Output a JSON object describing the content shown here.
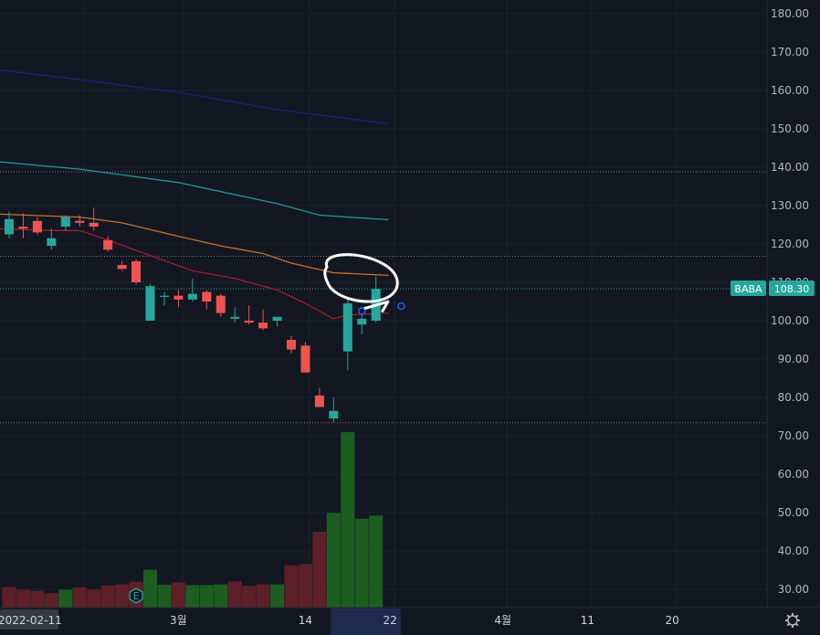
{
  "colors": {
    "background": "#131722",
    "grid": "#1e222d",
    "up": "#26a69a",
    "down": "#ef5350",
    "volume_up": "#1b5e20",
    "volume_down": "#5d2028",
    "ma_navy": "#1a237e",
    "ma_teal": "#1e9a97",
    "ma_orange": "#c9712a",
    "ma_red": "#a31c2a",
    "badge": "#26a69a",
    "annotation": "#ffffff",
    "scale_text": "#b2b5be"
  },
  "price_axis": {
    "ticks": [
      "180.00",
      "170.00",
      "160.00",
      "150.00",
      "140.00",
      "130.00",
      "120.00",
      "110.00",
      "100.00",
      "90.00",
      "80.00",
      "70.00",
      "60.00",
      "50.00",
      "40.00",
      "30.00"
    ]
  },
  "time_axis": {
    "start_label": "2022-02-11",
    "labels": [
      {
        "text": "3월",
        "bar": 12
      },
      {
        "text": "14",
        "bar": 21
      },
      {
        "text": "22",
        "bar": 27
      },
      {
        "text": "4월",
        "bar": 35
      },
      {
        "text": "11",
        "bar": 41
      },
      {
        "text": "20",
        "bar": 47
      }
    ]
  },
  "symbol_badge": {
    "symbol": "BABA",
    "price": "108.30"
  },
  "earnings_marker": {
    "letter": "E",
    "bar": 9
  },
  "settings_icon": "gear-icon",
  "chart_data": {
    "type": "candlestick",
    "symbol": "BABA",
    "last_price": 108.3,
    "ylim": [
      25,
      183
    ],
    "horizontal_lines": [
      138.8,
      116.8,
      108.3,
      73.4
    ],
    "candles": [
      {
        "o": 122.5,
        "h": 128.5,
        "l": 121.5,
        "c": 126.5
      },
      {
        "o": 124.5,
        "h": 128.0,
        "l": 121.5,
        "c": 124.0
      },
      {
        "o": 126.0,
        "h": 127.0,
        "l": 122.5,
        "c": 123.0
      },
      {
        "o": 119.5,
        "h": 124.0,
        "l": 118.5,
        "c": 121.5
      },
      {
        "o": 124.5,
        "h": 127.5,
        "l": 123.5,
        "c": 127.0
      },
      {
        "o": 126.0,
        "h": 127.5,
        "l": 124.5,
        "c": 125.5
      },
      {
        "o": 125.5,
        "h": 129.5,
        "l": 123.5,
        "c": 124.5
      },
      {
        "o": 121.0,
        "h": 122.0,
        "l": 118.0,
        "c": 118.5
      },
      {
        "o": 114.5,
        "h": 115.5,
        "l": 113.0,
        "c": 113.5
      },
      {
        "o": 115.5,
        "h": 116.0,
        "l": 109.5,
        "c": 110.0
      },
      {
        "o": 100.0,
        "h": 109.5,
        "l": 100.0,
        "c": 109.0
      },
      {
        "o": 106.5,
        "h": 107.5,
        "l": 104.0,
        "c": 106.5
      },
      {
        "o": 106.5,
        "h": 108.0,
        "l": 103.5,
        "c": 105.5
      },
      {
        "o": 105.5,
        "h": 111.0,
        "l": 105.0,
        "c": 107.0
      },
      {
        "o": 107.5,
        "h": 108.0,
        "l": 103.0,
        "c": 105.0
      },
      {
        "o": 106.5,
        "h": 107.0,
        "l": 101.0,
        "c": 102.0
      },
      {
        "o": 100.5,
        "h": 103.5,
        "l": 99.5,
        "c": 101.0
      },
      {
        "o": 100.0,
        "h": 104.0,
        "l": 99.0,
        "c": 99.5
      },
      {
        "o": 99.5,
        "h": 103.0,
        "l": 97.5,
        "c": 98.0
      },
      {
        "o": 100.0,
        "h": 101.0,
        "l": 98.5,
        "c": 101.0
      },
      {
        "o": 95.0,
        "h": 96.0,
        "l": 91.5,
        "c": 92.5
      },
      {
        "o": 93.5,
        "h": 94.5,
        "l": 86.5,
        "c": 86.5
      },
      {
        "o": 80.5,
        "h": 82.5,
        "l": 77.5,
        "c": 77.5
      },
      {
        "o": 74.5,
        "h": 80.0,
        "l": 73.5,
        "c": 76.5
      },
      {
        "o": 92.0,
        "h": 105.5,
        "l": 87.0,
        "c": 104.5
      },
      {
        "o": 99.0,
        "h": 102.0,
        "l": 96.5,
        "c": 100.5
      },
      {
        "o": 100.0,
        "h": 111.5,
        "l": 99.5,
        "c": 108.3
      }
    ],
    "volume_colors": [
      "down",
      "down",
      "down",
      "down",
      "up",
      "down",
      "down",
      "down",
      "down",
      "down",
      "up",
      "up",
      "down",
      "up",
      "up",
      "up",
      "down",
      "down",
      "down",
      "up",
      "down",
      "down",
      "down",
      "up",
      "up",
      "up",
      "up"
    ],
    "volume_price_tops": [
      30.6,
      29.9,
      29.6,
      29.0,
      29.9,
      30.5,
      29.9,
      31.0,
      31.3,
      32.0,
      35.1,
      31.2,
      31.8,
      31.1,
      31.1,
      31.3,
      32.1,
      30.9,
      31.3,
      31.3,
      36.3,
      36.6,
      45.0,
      49.9,
      71.0,
      48.4,
      49.2
    ],
    "moving_averages": [
      {
        "color": "#1a237e",
        "points": [
          [
            -1,
            165.5
          ],
          [
            5,
            162.8
          ],
          [
            12,
            159.5
          ],
          [
            19,
            155.0
          ],
          [
            26.9,
            151.3
          ]
        ]
      },
      {
        "color": "#1e9a97",
        "points": [
          [
            -1,
            141.5
          ],
          [
            5,
            139.5
          ],
          [
            12,
            136.0
          ],
          [
            19,
            130.5
          ],
          [
            22,
            127.5
          ],
          [
            26.9,
            126.3
          ]
        ]
      },
      {
        "color": "#c9712a",
        "points": [
          [
            -1,
            127.8
          ],
          [
            5,
            127.0
          ],
          [
            8,
            125.5
          ],
          [
            12,
            122.0
          ],
          [
            15,
            119.5
          ],
          [
            18,
            117.5
          ],
          [
            20,
            115.0
          ],
          [
            23,
            112.5
          ],
          [
            26.9,
            111.8
          ]
        ]
      },
      {
        "color": "#a31c2a",
        "points": [
          [
            -1,
            124.0
          ],
          [
            3,
            123.5
          ],
          [
            5,
            123.5
          ],
          [
            7,
            121.0
          ],
          [
            10,
            117.0
          ],
          [
            13,
            113.0
          ],
          [
            16,
            111.0
          ],
          [
            19,
            108.0
          ],
          [
            21,
            104.5
          ],
          [
            23,
            100.5
          ],
          [
            24,
            101.5
          ],
          [
            26.9,
            102.0
          ]
        ]
      }
    ],
    "annotation_points": [
      [
        25.0,
        102.5
      ],
      [
        26.85,
        104.0
      ],
      [
        27.8,
        103.8
      ]
    ]
  }
}
